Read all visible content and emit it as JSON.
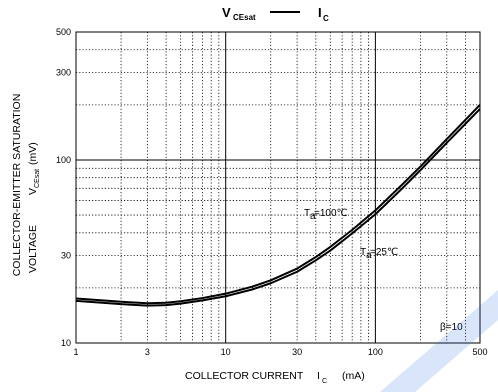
{
  "chart_data": {
    "type": "line",
    "title": {
      "left_main": "V",
      "left_sub": "CEsat",
      "right_main": "I",
      "right_sub": "C"
    },
    "xlabel": {
      "main": "COLLECTOR CURRENT",
      "var": "I",
      "sub": "C",
      "unit": "(mA)"
    },
    "ylabel": {
      "line1": "COLLECTOR-EMITTER SATURATION",
      "line2_prefix": "VOLTAGE",
      "var": "V",
      "sub": "CEsat",
      "unit": "(mV)"
    },
    "x_scale": "log",
    "y_scale": "log",
    "xlim": [
      1,
      500
    ],
    "ylim": [
      10,
      500
    ],
    "x_tick_labels": [
      "1",
      "3",
      "10",
      "30",
      "100",
      "500"
    ],
    "y_tick_labels": [
      "10",
      "30",
      "100",
      "300",
      "500"
    ],
    "x_ticks": [
      1,
      3,
      10,
      30,
      100,
      500
    ],
    "y_ticks": [
      10,
      30,
      100,
      300,
      500
    ],
    "grid": true,
    "legend_text": "β=10",
    "legend_position": "bottom-right",
    "series": [
      {
        "name": "Ta=100℃",
        "label_var": "T",
        "label_sub": "a",
        "label_value": "=100℃",
        "x": [
          1,
          1.5,
          2,
          3,
          4,
          5,
          7,
          10,
          15,
          20,
          30,
          40,
          50,
          70,
          100,
          150,
          200,
          300,
          500
        ],
        "y": [
          17.5,
          17.1,
          16.8,
          16.5,
          16.6,
          16.9,
          17.6,
          18.6,
          20.3,
          22.0,
          25.5,
          29.5,
          33.5,
          41.5,
          53.0,
          73.0,
          92.0,
          130.0,
          200.0
        ]
      },
      {
        "name": "Ta=25℃",
        "label_var": "T",
        "label_sub": "a",
        "label_value": "=25℃",
        "x": [
          1,
          1.5,
          2,
          3,
          4,
          5,
          7,
          10,
          15,
          20,
          30,
          40,
          50,
          70,
          100,
          150,
          200,
          300,
          500
        ],
        "y": [
          17.0,
          16.6,
          16.3,
          16.0,
          16.1,
          16.4,
          17.1,
          18.0,
          19.6,
          21.2,
          24.5,
          28.3,
          32.0,
          39.7,
          50.5,
          69.5,
          88.0,
          124.0,
          190.0
        ]
      }
    ]
  },
  "colors": {
    "line": "#000000",
    "grid": "#000000",
    "background": "#ffffff",
    "watermark": "#2f6fd8"
  }
}
